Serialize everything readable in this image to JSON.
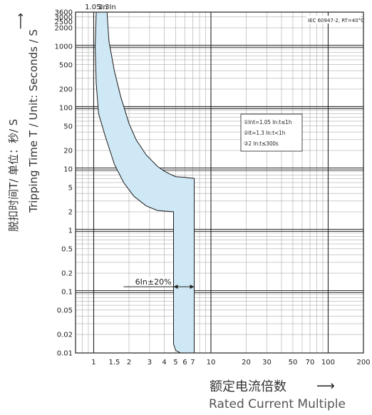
{
  "chart_data": {
    "type": "area",
    "title": "",
    "standard_note": "IEC 60947-2, RT=40°C",
    "ylabel_cn": "脱扣时间T/ 单位：秒/ S",
    "ylabel_en": "Tripping Time T / Unit: Seconds / S",
    "xlabel_cn": "额定电流倍数",
    "xlabel_en": "Rated Current Multiple",
    "x_scale": "log",
    "y_scale": "log",
    "xlim": [
      0.7,
      200
    ],
    "ylim": [
      0.01,
      3600
    ],
    "grid": true,
    "x_ticks": [
      1,
      1.5,
      2,
      3,
      4,
      5,
      6,
      7,
      10,
      20,
      30,
      50,
      70,
      100,
      200
    ],
    "x_tick_labels": [
      "1",
      "1.5",
      "2",
      "3",
      "4",
      "5",
      "6",
      "7",
      "10",
      "20",
      "30",
      "50",
      "70",
      "100",
      "200"
    ],
    "y_ticks": [
      0.01,
      0.02,
      0.05,
      0.1,
      0.2,
      0.5,
      1,
      2,
      5,
      10,
      20,
      50,
      100,
      200,
      500,
      1000,
      2000,
      2500,
      3000,
      3600
    ],
    "y_tick_labels": [
      "0.01",
      "0.02",
      "0.05",
      "0.1",
      "0.2",
      "0.5",
      "1",
      "2",
      "5",
      "10",
      "20",
      "50",
      "100",
      "200",
      "500",
      "1000",
      "2000",
      "2500",
      "3000",
      "3600"
    ],
    "top_labels": [
      {
        "text": "1.05In",
        "x": 1.05
      },
      {
        "text": "1.3In",
        "x": 1.3
      }
    ],
    "annotation": {
      "text": "6In±20%",
      "x_from": 4.8,
      "x_to": 7.2,
      "y": 0.12
    },
    "legend": {
      "placement": "center-right",
      "entries": [
        "①Int=1.05 In:t≤1h",
        "②It=1.3 In:t<1h",
        "③2 In:t≤300s"
      ]
    },
    "band_color": "#cfe8f6",
    "series": [
      {
        "band": "tripping-band",
        "upper": [
          [
            1.3,
            3600
          ],
          [
            1.35,
            1200
          ],
          [
            1.5,
            400
          ],
          [
            1.7,
            150
          ],
          [
            2,
            55
          ],
          [
            2.3,
            30
          ],
          [
            2.8,
            17
          ],
          [
            3.5,
            11
          ],
          [
            4,
            9.2
          ],
          [
            4.5,
            8.2
          ],
          [
            5,
            7.5
          ],
          [
            6,
            7.3
          ],
          [
            7.2,
            7.0
          ],
          [
            7.2,
            0.01
          ]
        ],
        "lower": [
          [
            1.05,
            3600
          ],
          [
            1.03,
            1000
          ],
          [
            1.05,
            250
          ],
          [
            1.1,
            80
          ],
          [
            1.25,
            35
          ],
          [
            1.5,
            12
          ],
          [
            1.8,
            6
          ],
          [
            2.2,
            3.6
          ],
          [
            2.8,
            2.5
          ],
          [
            3.5,
            2.1
          ],
          [
            4.8,
            2.0
          ],
          [
            4.8,
            0.014
          ],
          [
            5.0,
            0.011
          ],
          [
            5.5,
            0.01
          ]
        ]
      }
    ]
  }
}
